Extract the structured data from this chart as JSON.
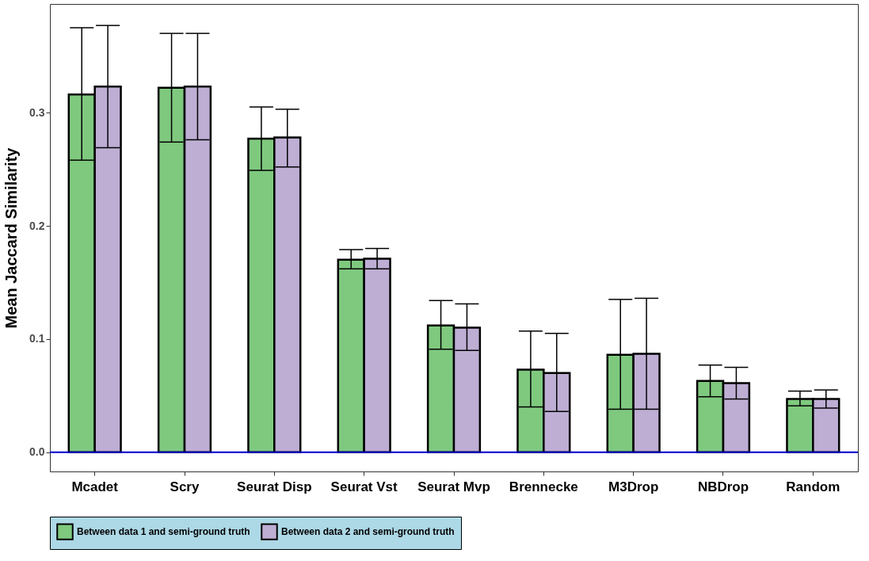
{
  "chart_data": {
    "type": "bar",
    "ylabel": "Mean Jaccard Similarity",
    "categories": [
      "Mcadet",
      "Scry",
      "Seurat Disp",
      "Seurat Vst",
      "Seurat Mvp",
      "Brennecke",
      "M3Drop",
      "NBDrop",
      "Random"
    ],
    "series": [
      {
        "name": "Between data 1 and semi-ground truth",
        "color": "#7fc97f",
        "values": [
          0.316,
          0.322,
          0.277,
          0.17,
          0.112,
          0.073,
          0.086,
          0.063,
          0.047
        ],
        "errors": [
          [
            0.258,
            0.375
          ],
          [
            0.274,
            0.37
          ],
          [
            0.249,
            0.305
          ],
          [
            0.162,
            0.179
          ],
          [
            0.091,
            0.134
          ],
          [
            0.04,
            0.107
          ],
          [
            0.038,
            0.135
          ],
          [
            0.049,
            0.077
          ],
          [
            0.041,
            0.054
          ]
        ]
      },
      {
        "name": "Between data 2 and semi-ground truth",
        "color": "#beaed4",
        "values": [
          0.323,
          0.323,
          0.278,
          0.171,
          0.11,
          0.07,
          0.087,
          0.061,
          0.047
        ],
        "errors": [
          [
            0.269,
            0.377
          ],
          [
            0.276,
            0.37
          ],
          [
            0.252,
            0.303
          ],
          [
            0.162,
            0.18
          ],
          [
            0.09,
            0.131
          ],
          [
            0.036,
            0.105
          ],
          [
            0.038,
            0.136
          ],
          [
            0.047,
            0.075
          ],
          [
            0.039,
            0.055
          ]
        ]
      }
    ],
    "ylim": [
      -0.017,
      0.396
    ],
    "yticks": [
      {
        "value": 0,
        "label": "0.0"
      },
      {
        "value": 0.1,
        "label": "0.1"
      },
      {
        "value": 0.2,
        "label": "0.2"
      },
      {
        "value": 0.3,
        "label": "0.3"
      }
    ],
    "ref_lines": [
      {
        "axis": "y",
        "value": 0,
        "color": "#0000cc"
      }
    ],
    "grid": false,
    "legend": "bottom"
  }
}
